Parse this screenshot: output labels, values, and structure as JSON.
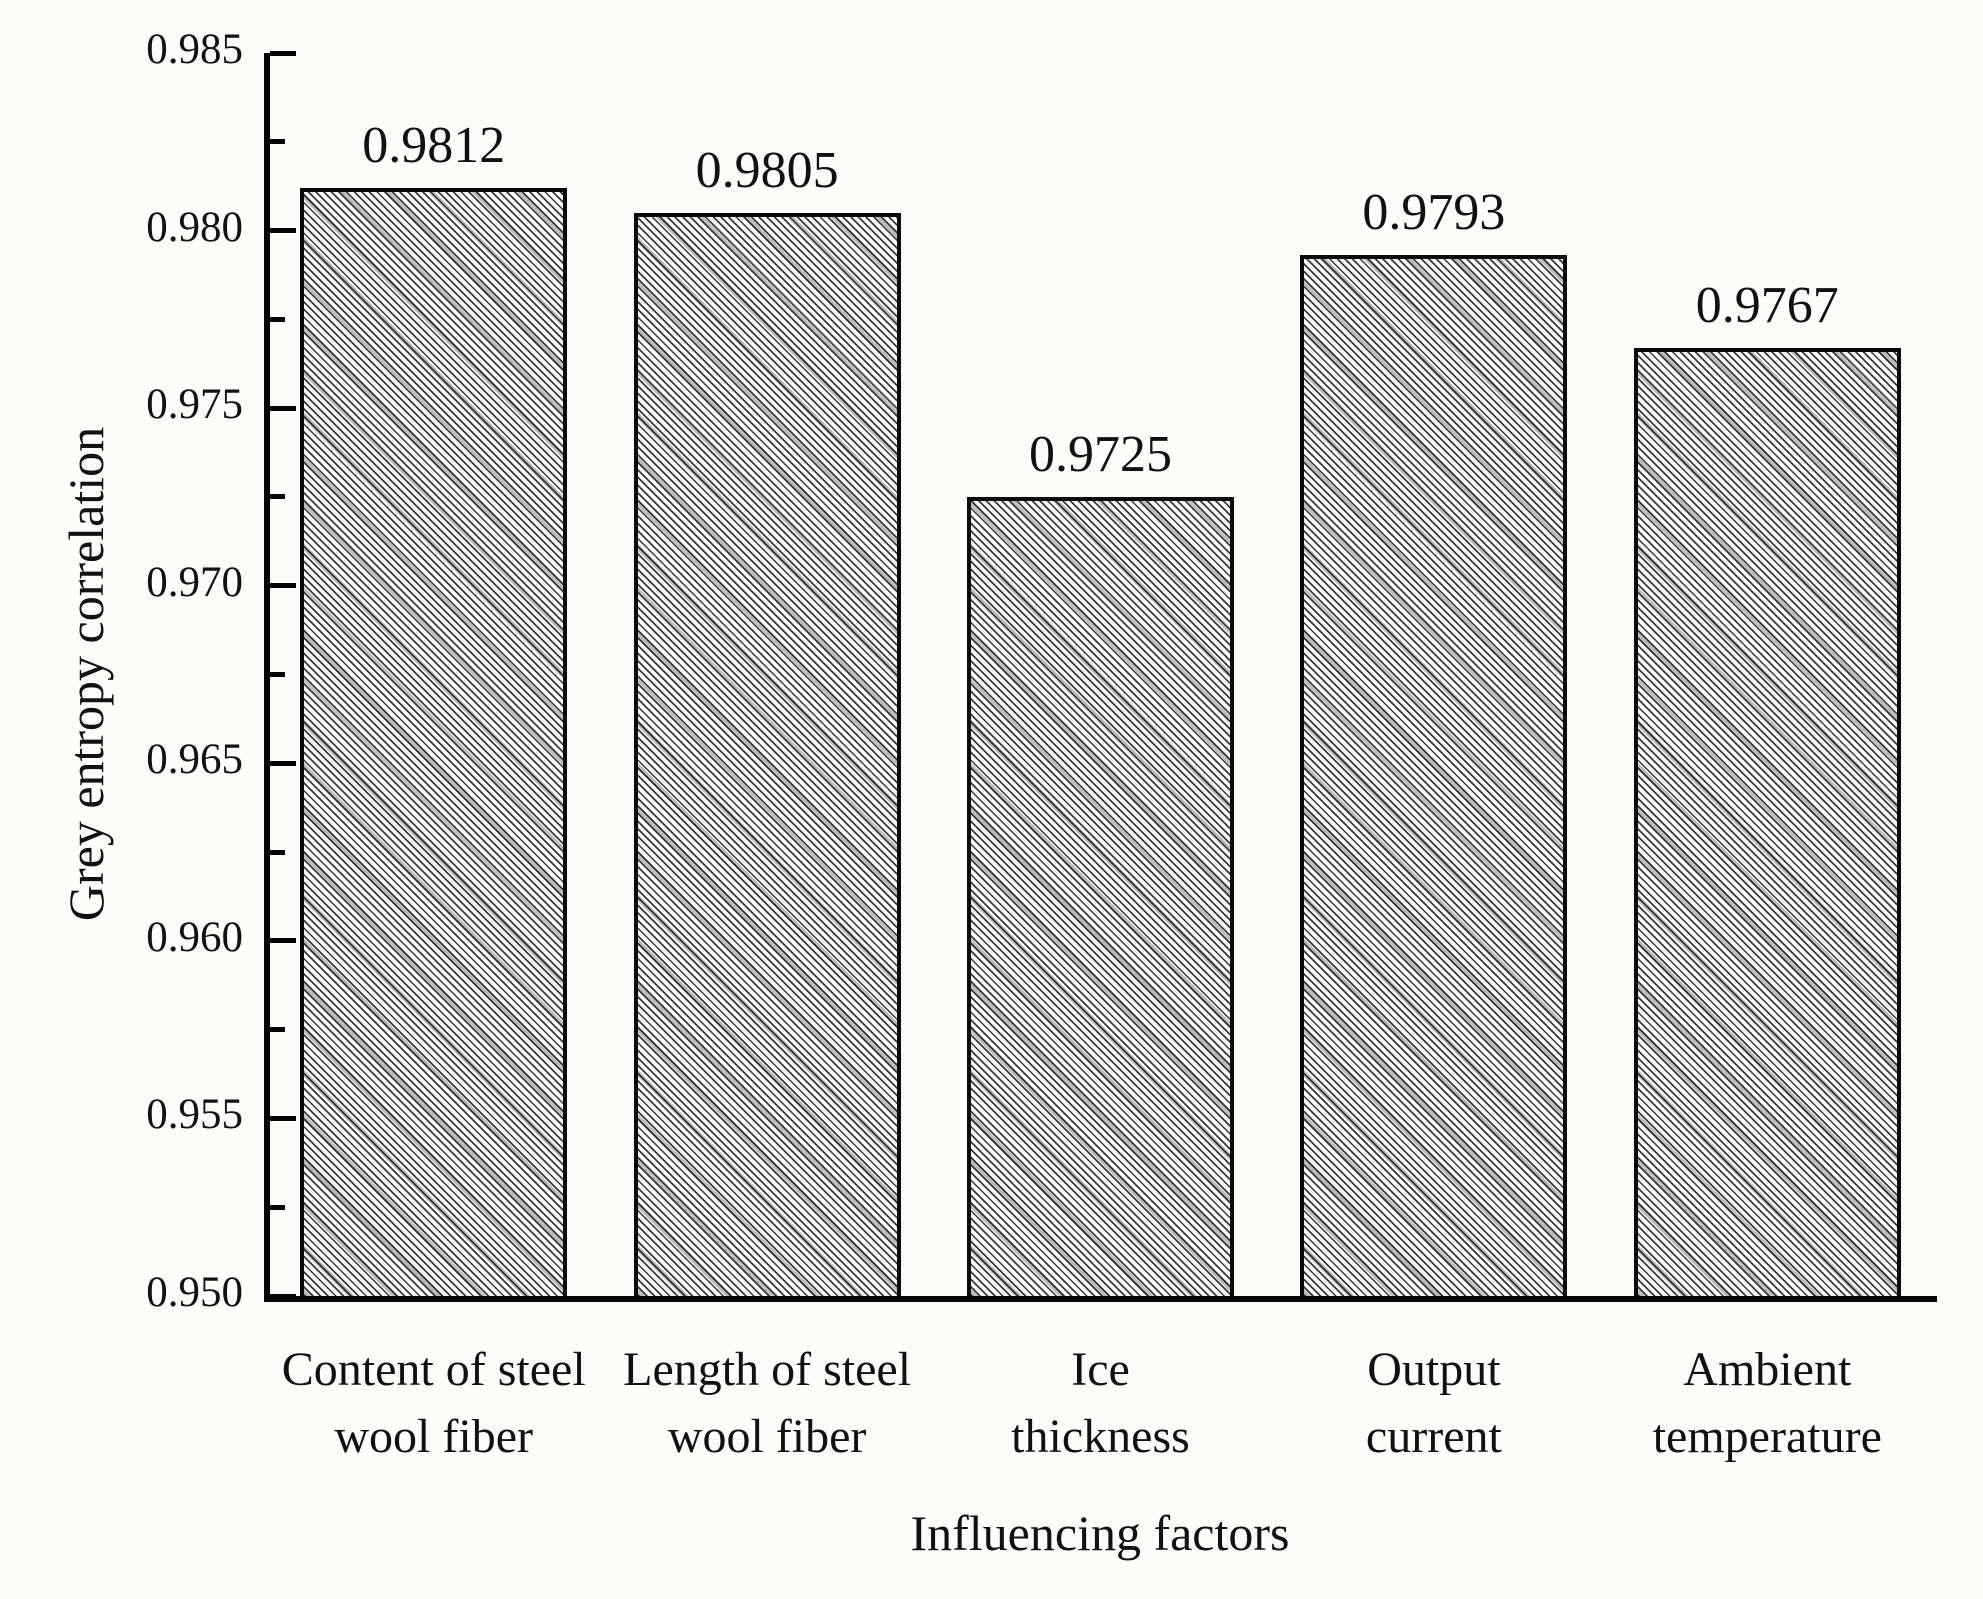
{
  "figure": {
    "background_color": "#fcfcfb",
    "axis_color": "#050505",
    "text_color": "#111111",
    "bar_fill_color": "#fdfdfc",
    "bar_border_color": "#0a0a0a",
    "hatch_line_color": "#1e1e1e",
    "hatch_accent_color": "#7d7d7d"
  },
  "chart_data": {
    "type": "bar",
    "title": "",
    "xlabel": "Influencing factors",
    "ylabel": "Grey entropy correlation",
    "categories": [
      "Content of steel wool fiber",
      "Length of steel wool fiber",
      "Ice thickness",
      "Output current",
      "Ambient temperature"
    ],
    "categories_wrapped": [
      [
        "Content of steel",
        "wool fiber"
      ],
      [
        "Length of steel",
        "wool fiber"
      ],
      [
        "Ice",
        "thickness"
      ],
      [
        "Output",
        "current"
      ],
      [
        "Ambient",
        "temperature"
      ]
    ],
    "values": [
      0.9812,
      0.9805,
      0.9725,
      0.9793,
      0.9767
    ],
    "value_labels": [
      "0.9812",
      "0.9805",
      "0.9725",
      "0.9793",
      "0.9767"
    ],
    "ylim": [
      0.95,
      0.985
    ],
    "y_ticks": [
      0.985,
      0.98,
      0.975,
      0.97,
      0.965,
      0.96,
      0.955,
      0.95
    ],
    "y_tick_labels": [
      "0.985",
      "0.980",
      "0.975",
      "0.970",
      "0.965",
      "0.960",
      "0.955",
      "0.950"
    ],
    "minor_ticks_between_majors": true,
    "grid": false,
    "legend_position": "none",
    "bar_hatch": "diagonal-backslash"
  }
}
